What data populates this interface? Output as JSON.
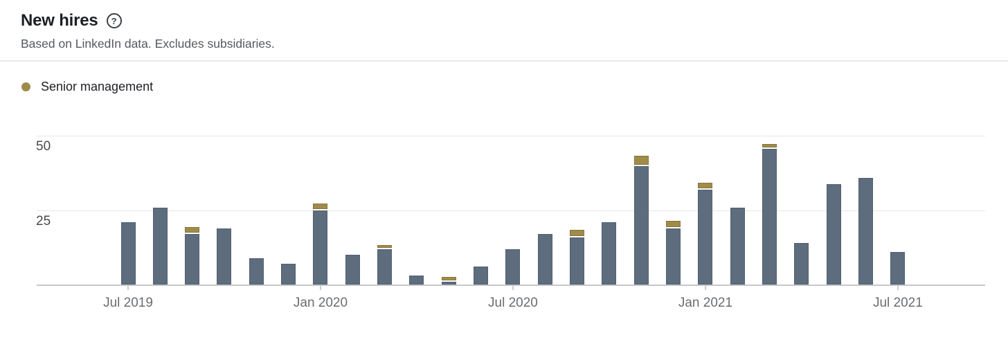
{
  "header": {
    "title": "New hires",
    "help_icon": "question-mark-circle-icon",
    "help_glyph": "?",
    "subtitle": "Based on LinkedIn data. Excludes subsidiaries."
  },
  "legend": {
    "items": [
      {
        "label": "Senior management",
        "color": "#9e8b4c"
      }
    ]
  },
  "colors": {
    "bar_base": "#5e6d7d",
    "bar_senior": "#a08c4a",
    "gridline": "#e6e6e8",
    "axis_line": "#c6c7cb",
    "background": "#ffffff"
  },
  "chart_data": {
    "type": "bar",
    "stacked": true,
    "title": "New hires",
    "x": [
      "Jul 2019",
      "Aug 2019",
      "Sep 2019",
      "Oct 2019",
      "Nov 2019",
      "Dec 2019",
      "Jan 2020",
      "Feb 2020",
      "Mar 2020",
      "Apr 2020",
      "May 2020",
      "Jun 2020",
      "Jul 2020",
      "Aug 2020",
      "Sep 2020",
      "Oct 2020",
      "Nov 2020",
      "Dec 2020",
      "Jan 2021",
      "Feb 2021",
      "Mar 2021",
      "Apr 2021",
      "May 2021",
      "Jun 2021",
      "Jul 2021"
    ],
    "series": [
      {
        "name": "",
        "color": "#5e6d7d",
        "values": [
          21,
          26,
          17,
          19,
          9,
          7,
          25,
          10,
          12,
          3,
          1,
          6,
          12,
          17,
          16,
          21,
          40,
          19,
          32,
          26,
          46,
          14,
          34,
          36,
          11
        ]
      },
      {
        "name": "Senior management",
        "color": "#a08c4a",
        "values": [
          0,
          0,
          2,
          0,
          0,
          0,
          2,
          0,
          1,
          0,
          1,
          0,
          0,
          0,
          2,
          0,
          3,
          2,
          2,
          0,
          1,
          0,
          0,
          0,
          0
        ]
      }
    ],
    "x_tick_labels": [
      {
        "label": "Jul 2019",
        "index": 0
      },
      {
        "label": "Jan 2020",
        "index": 6
      },
      {
        "label": "Jul 2020",
        "index": 12
      },
      {
        "label": "Jan 2021",
        "index": 18
      },
      {
        "label": "Jul 2021",
        "index": 24
      }
    ],
    "yticks": [
      25,
      50
    ],
    "ylim": [
      0,
      50
    ],
    "grid": "horizontal",
    "legend_position": "top-left"
  }
}
